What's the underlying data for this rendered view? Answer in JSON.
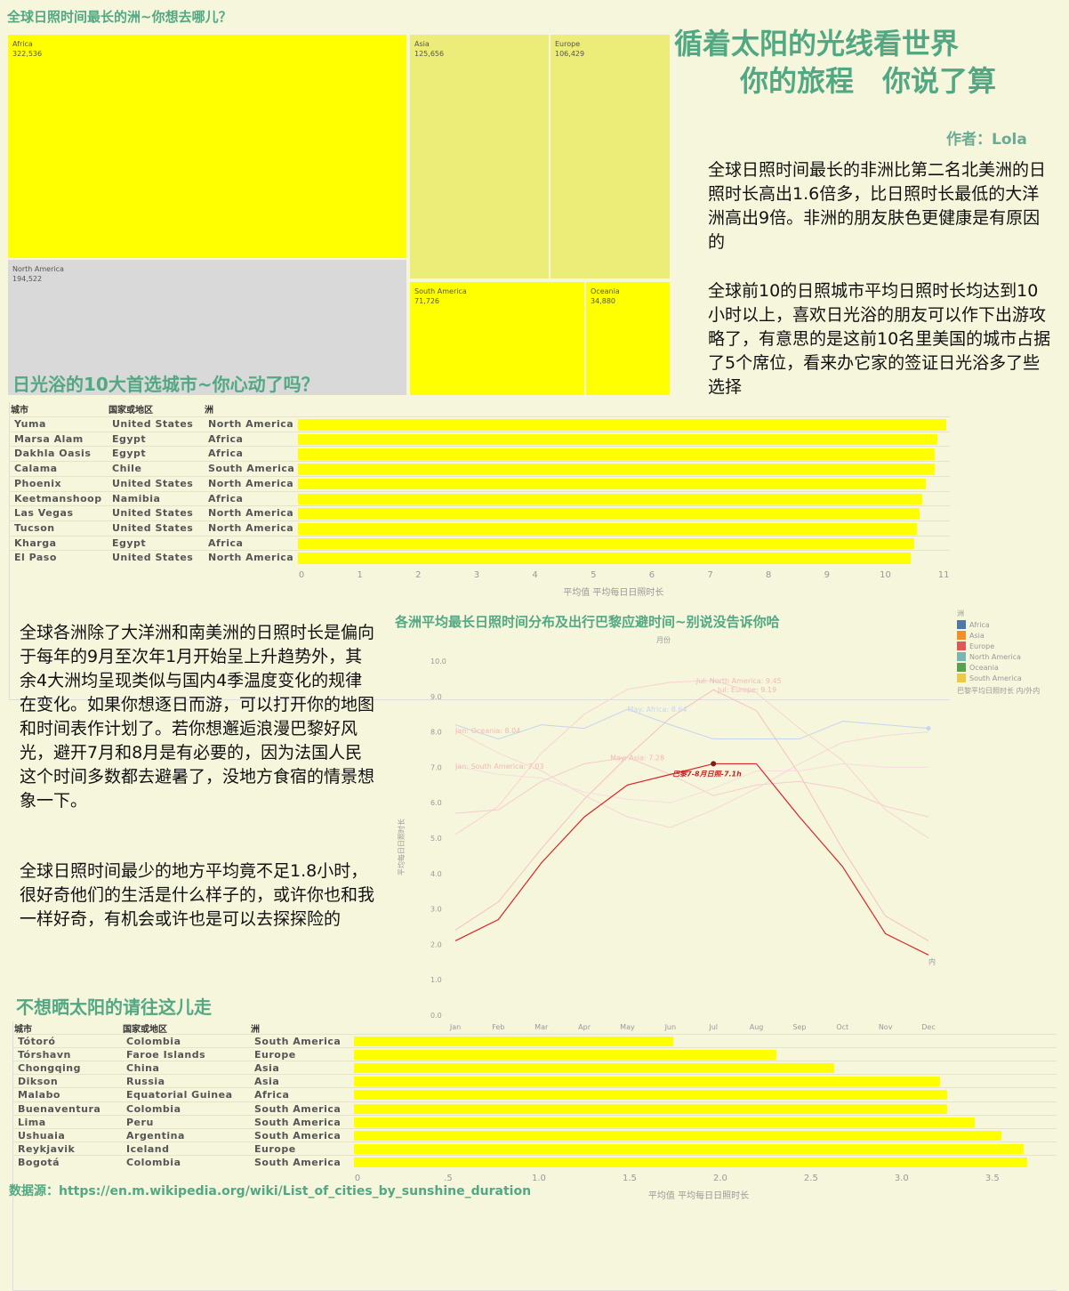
{
  "treemap": {
    "title": "全球日照时间最长的洲~你想去哪儿？",
    "items": [
      {
        "name": "Africa",
        "value": "322,536",
        "color": "#ffff00"
      },
      {
        "name": "North America",
        "value": "194,522",
        "color": "#d9d9d9"
      },
      {
        "name": "Asia",
        "value": "125,656",
        "color": "#ecec78"
      },
      {
        "name": "Europe",
        "value": "106,429",
        "color": "#ecec78"
      },
      {
        "name": "South America",
        "value": "71,726",
        "color": "#ffff00"
      },
      {
        "name": "Oceania",
        "value": "34,880",
        "color": "#ffff00"
      }
    ]
  },
  "header": {
    "title_line1": "循着太阳的光线看世界",
    "title_line2": "你的旅程　你说了算",
    "author": "作者：Lola"
  },
  "paragraphs": {
    "p1": "全球日照时间最长的非洲比第二名北美洲的日照时长高出1.6倍多，比日照时长最低的大洋洲高出9倍。非洲的朋友肤色更健康是有原因的",
    "p2": "全球前10的日照城市平均日照时长均达到10小时以上，喜欢日光浴的朋友可以作下出游攻略了，有意思的是这前10名里美国的城市占据了5个席位，看来办它家的签证日光浴多了些选择",
    "p3": "全球各洲除了大洋洲和南美洲的日照时长是偏向于每年的9月至次年1月开始呈上升趋势外，其余4大洲均呈现类似与国内4季温度变化的规律在变化。如果你想逐日而游，可以打开你的地图和时间表作计划了。若你想邂逅浪漫巴黎好风光，避开7月和8月是有必要的，因为法国人民这个时间多数都去避暑了，没地方食宿的情景想象一下。",
    "p4": "全球日照时间最少的地方平均竟不足1.8小时，很好奇他们的生活是什么样子的，或许你也和我一样好奇，有机会或许也是可以去探探险的"
  },
  "top10": {
    "title": "日光浴的10大首选城市~你心动了吗？",
    "headers": [
      "城市",
      "国家或地区",
      "洲"
    ],
    "axis_title": "平均值 平均每日日照时长",
    "ticks": [
      "0",
      "1",
      "2",
      "3",
      "4",
      "5",
      "6",
      "7",
      "8",
      "9",
      "10",
      "11"
    ],
    "rows": [
      {
        "city": "Yuma",
        "country": "United States",
        "continent": "North America"
      },
      {
        "city": "Marsa Alam",
        "country": "Egypt",
        "continent": "Africa"
      },
      {
        "city": "Dakhla Oasis",
        "country": "Egypt",
        "continent": "Africa"
      },
      {
        "city": "Calama",
        "country": "Chile",
        "continent": "South America"
      },
      {
        "city": "Phoenix",
        "country": "United States",
        "continent": "North America"
      },
      {
        "city": "Keetmanshoop",
        "country": "Namibia",
        "continent": "Africa"
      },
      {
        "city": "Las Vegas",
        "country": "United States",
        "continent": "North America"
      },
      {
        "city": "Tucson",
        "country": "United States",
        "continent": "North America"
      },
      {
        "city": "Kharga",
        "country": "Egypt",
        "continent": "Africa"
      },
      {
        "city": "El Paso",
        "country": "United States",
        "continent": "North America"
      }
    ]
  },
  "bottom10": {
    "title": "不想晒太阳的请往这儿走",
    "headers": [
      "城市",
      "国家或地区",
      "洲"
    ],
    "axis_title": "平均值 平均每日日照时长",
    "ticks": [
      "0",
      ".5",
      "1.0",
      "1.5",
      "2.0",
      "2.5",
      "3.0",
      "3.5"
    ],
    "rows": [
      {
        "city": "Tótoró",
        "country": "Colombia",
        "continent": "South America"
      },
      {
        "city": "Tórshavn",
        "country": "Faroe Islands",
        "continent": "Europe"
      },
      {
        "city": "Chongqing",
        "country": "China",
        "continent": "Asia"
      },
      {
        "city": "Dikson",
        "country": "Russia",
        "continent": "Asia"
      },
      {
        "city": "Malabo",
        "country": "Equatorial Guinea",
        "continent": "Africa"
      },
      {
        "city": "Buenaventura",
        "country": "Colombia",
        "continent": "South America"
      },
      {
        "city": "Lima",
        "country": "Peru",
        "continent": "South America"
      },
      {
        "city": "Ushuaia",
        "country": "Argentina",
        "continent": "South America"
      },
      {
        "city": "Reykjavik",
        "country": "Iceland",
        "continent": "Europe"
      },
      {
        "city": "Bogotá",
        "country": "Colombia",
        "continent": "South America"
      }
    ]
  },
  "linechart": {
    "title": "各洲平均最长日照时间分布及出行巴黎应避时间~别说没告诉你哈",
    "top_label": "月份",
    "yaxis_title": "平均每日日照时长",
    "legend_title": "洲",
    "legend_extra": "巴黎平均日照时长 内/外内",
    "months": [
      "Jan",
      "Feb",
      "Mar",
      "Apr",
      "May",
      "Jun",
      "Jul",
      "Aug",
      "Sep",
      "Oct",
      "Nov",
      "Dec"
    ],
    "yticks": [
      "0.0",
      "1.0",
      "2.0",
      "3.0",
      "4.0",
      "5.0",
      "6.0",
      "7.0",
      "8.0",
      "9.0",
      "10.0"
    ],
    "annotations": [
      {
        "text": "Jul: North America: 9.45",
        "month": 5.6,
        "val": 9.45,
        "color": "#f4b8b8"
      },
      {
        "text": "Jul: Europe: 9.19",
        "month": 6.1,
        "val": 9.19,
        "color": "#f4b8b8"
      },
      {
        "text": "May: Africa: 8.64",
        "month": 4.0,
        "val": 8.64,
        "color": "#c7d6ee"
      },
      {
        "text": "Jan: Oceania: 8.04",
        "month": 0,
        "val": 8.04,
        "color": "#f4b8b8"
      },
      {
        "text": "May: Asia: 7.28",
        "month": 3.6,
        "val": 7.28,
        "color": "#f4b8b8"
      },
      {
        "text": "Jan: South America: 7.03",
        "month": 0,
        "val": 7.03,
        "color": "#f4b8b8"
      }
    ],
    "paris_label": "巴黎7-8月日照-7.1h",
    "end_label": "内"
  },
  "footer": {
    "source_label": "数据源：",
    "source_url": "https://en.m.wikipedia.org/wiki/List_of_cities_by_sunshine_duration"
  },
  "chart_data": [
    {
      "type": "treemap",
      "title": "全球日照时间最长的洲~你想去哪儿？",
      "categories": [
        "Africa",
        "North America",
        "Asia",
        "Europe",
        "South America",
        "Oceania"
      ],
      "values": [
        322536,
        194522,
        125656,
        106429,
        71726,
        34880
      ]
    },
    {
      "type": "bar",
      "title": "日光浴的10大首选城市~你心动了吗？",
      "categories": [
        "Yuma",
        "Marsa Alam",
        "Dakhla Oasis",
        "Calama",
        "Phoenix",
        "Keetmanshoop",
        "Las Vegas",
        "Tucson",
        "Kharga",
        "El Paso"
      ],
      "values": [
        11.1,
        10.95,
        10.9,
        10.9,
        10.75,
        10.7,
        10.65,
        10.6,
        10.55,
        10.5
      ],
      "xlabel": "平均值 平均每日日照时长",
      "xlim": [
        0,
        11.5
      ]
    },
    {
      "type": "line",
      "title": "各洲平均最长日照时间分布及出行巴黎应避时间~别说没告诉你哈",
      "x": [
        "Jan",
        "Feb",
        "Mar",
        "Apr",
        "May",
        "Jun",
        "Jul",
        "Aug",
        "Sep",
        "Oct",
        "Nov",
        "Dec"
      ],
      "ylabel": "平均每日日照时长",
      "ylim": [
        0,
        10
      ],
      "series": [
        {
          "name": "Africa",
          "color": "#4e79a7",
          "values": [
            8.2,
            7.8,
            8.2,
            8.1,
            8.64,
            8.2,
            7.8,
            7.8,
            7.8,
            8.3,
            8.2,
            8.1
          ]
        },
        {
          "name": "Asia",
          "color": "#f28e2b",
          "values": [
            5.7,
            5.8,
            6.6,
            7.1,
            7.28,
            6.8,
            6.2,
            6.5,
            6.6,
            6.4,
            5.9,
            5.6
          ]
        },
        {
          "name": "Europe",
          "color": "#e15759",
          "values": [
            2.4,
            3.2,
            4.7,
            6.1,
            7.3,
            8.4,
            9.19,
            8.6,
            6.8,
            4.7,
            2.8,
            2.1
          ]
        },
        {
          "name": "North America",
          "color": "#76b7b2",
          "values": [
            5.1,
            5.9,
            7.4,
            8.5,
            9.2,
            9.4,
            9.45,
            9.1,
            8.1,
            7.2,
            5.8,
            5.0
          ]
        },
        {
          "name": "Oceania",
          "color": "#59a14f",
          "values": [
            8.04,
            7.4,
            6.9,
            6.2,
            5.6,
            5.3,
            5.8,
            6.4,
            7.1,
            7.7,
            7.9,
            8.0
          ]
        },
        {
          "name": "South America",
          "color": "#edc948",
          "values": [
            7.03,
            6.8,
            6.7,
            6.3,
            6.1,
            6.0,
            6.4,
            6.9,
            6.9,
            7.1,
            7.0,
            7.0
          ]
        },
        {
          "name": "巴黎平均日照时长",
          "color": "#d62728",
          "values": [
            2.1,
            2.7,
            4.3,
            5.6,
            6.5,
            6.8,
            7.1,
            7.1,
            5.6,
            4.2,
            2.3,
            1.7
          ]
        }
      ]
    },
    {
      "type": "bar",
      "title": "不想晒太阳的请往这儿走",
      "categories": [
        "Tótoró",
        "Tórshavn",
        "Chongqing",
        "Dikson",
        "Malabo",
        "Buenaventura",
        "Lima",
        "Ushuaia",
        "Reykjavik",
        "Bogotá"
      ],
      "values": [
        1.76,
        2.33,
        2.65,
        3.23,
        3.27,
        3.27,
        3.42,
        3.57,
        3.69,
        3.71
      ],
      "xlabel": "平均值 平均每日日照时长",
      "xlim": [
        0,
        3.8
      ]
    }
  ]
}
